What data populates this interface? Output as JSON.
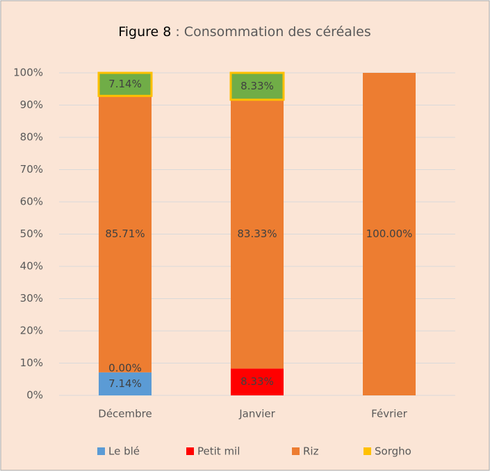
{
  "chart_data": {
    "type": "stacked_bar",
    "title_label": "Figure 8",
    "title": ": Consommation des céréales",
    "categories": [
      "Décembre",
      "Janvier",
      "Février"
    ],
    "series": [
      {
        "name": "Le blé",
        "color": "#5b9bd5",
        "values": [
          7.14,
          null,
          null
        ],
        "value_labels": [
          "7.14%",
          null,
          null
        ]
      },
      {
        "name": "Petit mil",
        "color": "#ff0000",
        "values": [
          0,
          8.33,
          null
        ],
        "value_labels": [
          "0.00%",
          "8.33%",
          null
        ]
      },
      {
        "name": "Riz",
        "color": "#ed7d31",
        "values": [
          85.71,
          83.33,
          100
        ],
        "value_labels": [
          "85.71%",
          "83.33%",
          "100.00%"
        ]
      },
      {
        "name": "Sorgho",
        "color": "#ffc000",
        "fill": "#70ad47",
        "values": [
          7.14,
          8.33,
          null
        ],
        "value_labels": [
          "7.14%",
          "8.33%",
          null
        ]
      }
    ],
    "ylim": [
      0,
      100
    ],
    "yticks": [
      {
        "value": 0,
        "label": "0%"
      },
      {
        "value": 10,
        "label": "10%"
      },
      {
        "value": 20,
        "label": "20%"
      },
      {
        "value": 30,
        "label": "30%"
      },
      {
        "value": 40,
        "label": "40%"
      },
      {
        "value": 50,
        "label": "50%"
      },
      {
        "value": 60,
        "label": "60%"
      },
      {
        "value": 70,
        "label": "70%"
      },
      {
        "value": 80,
        "label": "80%"
      },
      {
        "value": 90,
        "label": "90%"
      },
      {
        "value": 100,
        "label": "100%"
      }
    ],
    "grid": true,
    "legend": "bottom"
  }
}
